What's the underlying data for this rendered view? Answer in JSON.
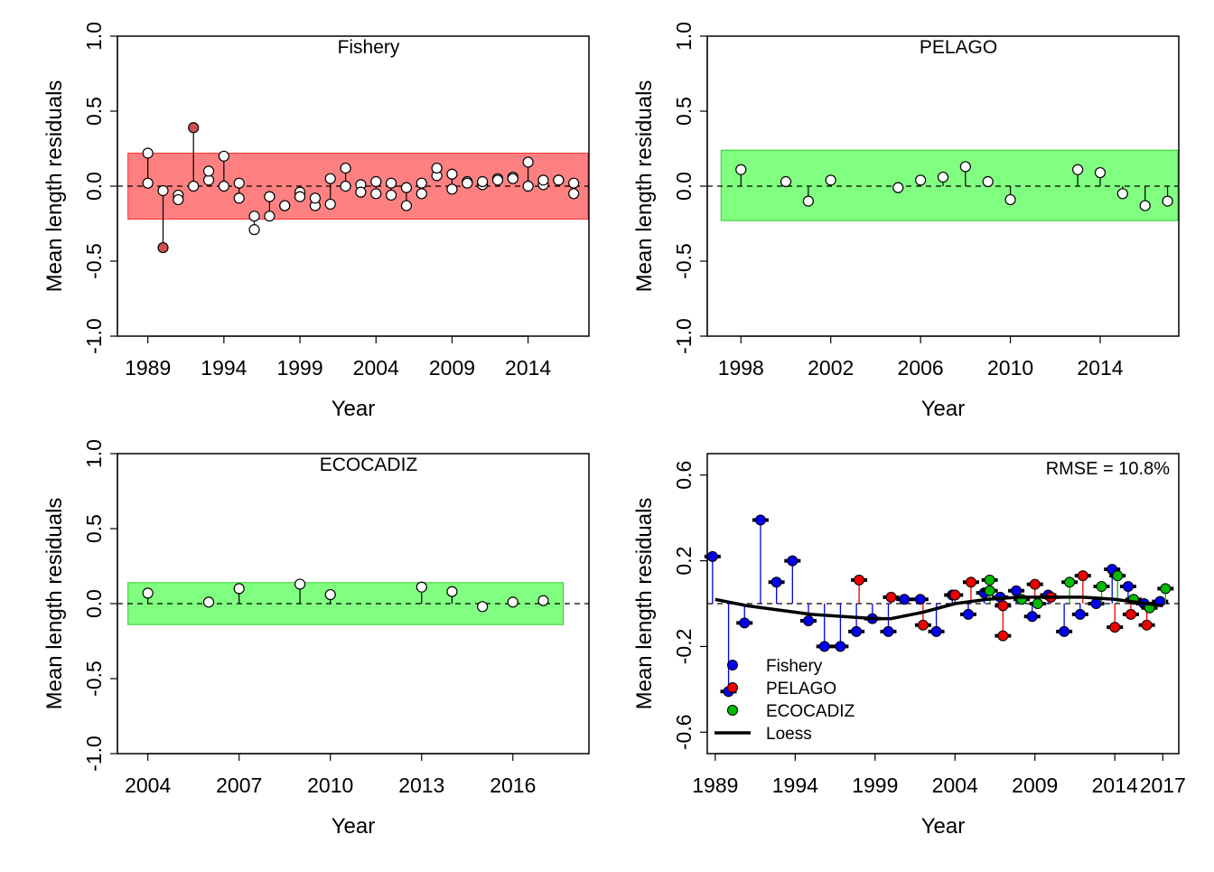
{
  "chart_data": [
    {
      "id": "fishery",
      "type": "scatter",
      "title": "Fishery",
      "xlabel": "Year",
      "ylabel": "Mean length residuals",
      "xlim": [
        1987,
        2018
      ],
      "ylim": [
        -1.0,
        1.0
      ],
      "xticks": [
        1989,
        1994,
        1999,
        2004,
        2009,
        2014
      ],
      "yticks": [
        -1.0,
        -0.5,
        0.0,
        0.5,
        1.0
      ],
      "ytick_labels": [
        "-1.0",
        "-0.5",
        "0.0",
        "0.5",
        "1.0"
      ],
      "band": [
        -0.22,
        0.22
      ],
      "band_fill": "#ff8080",
      "band_stroke": "#ff3333",
      "outlier_fill": "#d05050",
      "normal_fill": "#ffffff",
      "points": [
        {
          "x": 1989,
          "obs": 0.02,
          "res": 0.22
        },
        {
          "x": 1990,
          "obs": -0.03,
          "res": -0.41
        },
        {
          "x": 1991,
          "obs": -0.06,
          "res": -0.09
        },
        {
          "x": 1992,
          "obs": 0.0,
          "res": 0.39
        },
        {
          "x": 1993,
          "obs": 0.04,
          "res": 0.1
        },
        {
          "x": 1994,
          "obs": 0.0,
          "res": 0.2
        },
        {
          "x": 1995,
          "obs": 0.02,
          "res": -0.08
        },
        {
          "x": 1996,
          "obs": -0.29,
          "res": -0.2
        },
        {
          "x": 1997,
          "obs": -0.07,
          "res": -0.2
        },
        {
          "x": 1998,
          "obs": -0.13,
          "res": -0.13
        },
        {
          "x": 1999,
          "obs": -0.04,
          "res": -0.07
        },
        {
          "x": 2000,
          "obs": -0.13,
          "res": -0.08
        },
        {
          "x": 2001,
          "obs": 0.05,
          "res": -0.12
        },
        {
          "x": 2002,
          "obs": 0.0,
          "res": 0.12
        },
        {
          "x": 2003,
          "obs": 0.01,
          "res": -0.04
        },
        {
          "x": 2004,
          "obs": 0.03,
          "res": -0.05
        },
        {
          "x": 2005,
          "obs": 0.02,
          "res": -0.06
        },
        {
          "x": 2006,
          "obs": -0.01,
          "res": -0.13
        },
        {
          "x": 2007,
          "obs": -0.05,
          "res": 0.02
        },
        {
          "x": 2008,
          "obs": 0.07,
          "res": 0.12
        },
        {
          "x": 2009,
          "obs": 0.08,
          "res": -0.02
        },
        {
          "x": 2010,
          "obs": 0.03,
          "res": 0.02
        },
        {
          "x": 2011,
          "obs": 0.01,
          "res": 0.03
        },
        {
          "x": 2012,
          "obs": 0.05,
          "res": 0.04
        },
        {
          "x": 2013,
          "obs": 0.06,
          "res": 0.05
        },
        {
          "x": 2014,
          "obs": 0.0,
          "res": 0.16
        },
        {
          "x": 2015,
          "obs": 0.01,
          "res": 0.04
        },
        {
          "x": 2016,
          "obs": 0.04,
          "res": 0.04
        },
        {
          "x": 2017,
          "obs": -0.05,
          "res": 0.02
        }
      ]
    },
    {
      "id": "pelago",
      "type": "scatter",
      "title": "PELAGO",
      "xlabel": "Year",
      "ylabel": "Mean length residuals",
      "xlim": [
        1996.5,
        2017.5
      ],
      "ylim": [
        -1.0,
        1.0
      ],
      "xticks": [
        1998,
        2002,
        2006,
        2010,
        2014
      ],
      "yticks": [
        -1.0,
        -0.5,
        0.0,
        0.5,
        1.0
      ],
      "ytick_labels": [
        "-1.0",
        "-0.5",
        "0.0",
        "0.5",
        "1.0"
      ],
      "band": [
        -0.23,
        0.24
      ],
      "band_fill": "#80ff80",
      "band_stroke": "#33cc33",
      "normal_fill": "#ffffff",
      "points": [
        {
          "x": 1998,
          "res": 0.11
        },
        {
          "x": 2000,
          "res": 0.03
        },
        {
          "x": 2001,
          "res": -0.1
        },
        {
          "x": 2002,
          "res": 0.04
        },
        {
          "x": 2005,
          "res": -0.01
        },
        {
          "x": 2006,
          "res": 0.04
        },
        {
          "x": 2007,
          "res": 0.06
        },
        {
          "x": 2008,
          "res": 0.13
        },
        {
          "x": 2009,
          "res": 0.03
        },
        {
          "x": 2010,
          "res": -0.09
        },
        {
          "x": 2013,
          "res": 0.11
        },
        {
          "x": 2014,
          "res": 0.09
        },
        {
          "x": 2015,
          "res": -0.05
        },
        {
          "x": 2016,
          "res": -0.13
        },
        {
          "x": 2017,
          "res": -0.1
        }
      ]
    },
    {
      "id": "ecocadiz",
      "type": "scatter",
      "title": "ECOCADIZ",
      "xlabel": "Year",
      "ylabel": "Mean length residuals",
      "xlim": [
        2003,
        2018.5
      ],
      "ylim": [
        -1.0,
        1.0
      ],
      "xticks": [
        2004,
        2007,
        2010,
        2013,
        2016
      ],
      "yticks": [
        -1.0,
        -0.5,
        0.0,
        0.5,
        1.0
      ],
      "ytick_labels": [
        "-1.0",
        "-0.5",
        "0.0",
        "0.5",
        "1.0"
      ],
      "band": [
        -0.14,
        0.14
      ],
      "band_fill": "#80ff80",
      "band_stroke": "#33cc33",
      "normal_fill": "#ffffff",
      "points": [
        {
          "x": 2004,
          "res": 0.07
        },
        {
          "x": 2006,
          "res": 0.01
        },
        {
          "x": 2007,
          "res": 0.1
        },
        {
          "x": 2009,
          "res": 0.13
        },
        {
          "x": 2010,
          "res": 0.06
        },
        {
          "x": 2013,
          "res": 0.11
        },
        {
          "x": 2014,
          "res": 0.08
        },
        {
          "x": 2015,
          "res": -0.02
        },
        {
          "x": 2016,
          "res": 0.01
        },
        {
          "x": 2017,
          "res": 0.02
        }
      ]
    },
    {
      "id": "combined",
      "type": "scatter",
      "title": "",
      "annotation": "RMSE = 10.8%",
      "xlabel": "Year",
      "ylabel": "Mean length residuals",
      "xlim": [
        1988.5,
        2018
      ],
      "ylim": [
        -0.7,
        0.7
      ],
      "xticks": [
        1989,
        1994,
        1999,
        2004,
        2009,
        2014,
        2017
      ],
      "yticks": [
        -0.6,
        -0.2,
        0.2,
        0.6
      ],
      "ytick_labels": [
        "-0.6",
        "-0.2",
        "0.2",
        "0.6"
      ],
      "legend": {
        "position": "bottom-left",
        "entries": [
          {
            "label": "Fishery",
            "color": "#0000ee",
            "kind": "point"
          },
          {
            "label": "PELAGO",
            "color": "#ee0000",
            "kind": "point"
          },
          {
            "label": "ECOCADIZ",
            "color": "#00bb00",
            "kind": "point"
          },
          {
            "label": "Loess",
            "color": "#000000",
            "kind": "line"
          }
        ]
      },
      "series": [
        {
          "name": "Fishery",
          "color": "#0000ee",
          "points": [
            {
              "x": 1989,
              "res": 0.22
            },
            {
              "x": 1990,
              "res": -0.41
            },
            {
              "x": 1991,
              "res": -0.09
            },
            {
              "x": 1992,
              "res": 0.39
            },
            {
              "x": 1993,
              "res": 0.1
            },
            {
              "x": 1994,
              "res": 0.2
            },
            {
              "x": 1995,
              "res": -0.08
            },
            {
              "x": 1996,
              "res": -0.2
            },
            {
              "x": 1997,
              "res": -0.2
            },
            {
              "x": 1998,
              "res": -0.13
            },
            {
              "x": 1999,
              "res": -0.07
            },
            {
              "x": 2000,
              "res": -0.13
            },
            {
              "x": 2001,
              "res": 0.02
            },
            {
              "x": 2002,
              "res": 0.02
            },
            {
              "x": 2003,
              "res": -0.13
            },
            {
              "x": 2004,
              "res": 0.04
            },
            {
              "x": 2005,
              "res": -0.05
            },
            {
              "x": 2006,
              "res": 0.05
            },
            {
              "x": 2007,
              "res": 0.03
            },
            {
              "x": 2008,
              "res": 0.06
            },
            {
              "x": 2009,
              "res": -0.06
            },
            {
              "x": 2010,
              "res": 0.04
            },
            {
              "x": 2011,
              "res": -0.13
            },
            {
              "x": 2012,
              "res": -0.05
            },
            {
              "x": 2013,
              "res": 0.0
            },
            {
              "x": 2014,
              "res": 0.16
            },
            {
              "x": 2015,
              "res": 0.08
            },
            {
              "x": 2016,
              "res": 0.0
            },
            {
              "x": 2017,
              "res": 0.01
            }
          ]
        },
        {
          "name": "PELAGO",
          "color": "#ee0000",
          "points": [
            {
              "x": 1998,
              "res": 0.11
            },
            {
              "x": 2000,
              "res": 0.03
            },
            {
              "x": 2002,
              "res": -0.1
            },
            {
              "x": 2004,
              "res": 0.04
            },
            {
              "x": 2005,
              "res": 0.1
            },
            {
              "x": 2007,
              "res": -0.15
            },
            {
              "x": 2007,
              "res": -0.01
            },
            {
              "x": 2009,
              "res": 0.09
            },
            {
              "x": 2010,
              "res": 0.03
            },
            {
              "x": 2012,
              "res": 0.13
            },
            {
              "x": 2014,
              "res": -0.11
            },
            {
              "x": 2015,
              "res": -0.05
            },
            {
              "x": 2016,
              "res": -0.1
            }
          ]
        },
        {
          "name": "ECOCADIZ",
          "color": "#00bb00",
          "points": [
            {
              "x": 2006,
              "res": 0.11
            },
            {
              "x": 2006,
              "res": 0.06
            },
            {
              "x": 2008,
              "res": 0.02
            },
            {
              "x": 2009,
              "res": 0.0
            },
            {
              "x": 2011,
              "res": 0.1
            },
            {
              "x": 2013,
              "res": 0.08
            },
            {
              "x": 2014,
              "res": 0.13
            },
            {
              "x": 2015,
              "res": 0.02
            },
            {
              "x": 2016,
              "res": -0.02
            },
            {
              "x": 2017,
              "res": 0.07
            }
          ]
        }
      ],
      "loess": [
        {
          "x": 1989,
          "y": 0.02
        },
        {
          "x": 1991,
          "y": -0.01
        },
        {
          "x": 1993,
          "y": -0.03
        },
        {
          "x": 1995,
          "y": -0.05
        },
        {
          "x": 1997,
          "y": -0.06
        },
        {
          "x": 1999,
          "y": -0.07
        },
        {
          "x": 2000,
          "y": -0.07
        },
        {
          "x": 2002,
          "y": -0.04
        },
        {
          "x": 2004,
          "y": 0.0
        },
        {
          "x": 2006,
          "y": 0.02
        },
        {
          "x": 2008,
          "y": 0.03
        },
        {
          "x": 2010,
          "y": 0.03
        },
        {
          "x": 2012,
          "y": 0.03
        },
        {
          "x": 2014,
          "y": 0.02
        },
        {
          "x": 2016,
          "y": 0.0
        },
        {
          "x": 2017,
          "y": -0.01
        }
      ]
    }
  ]
}
